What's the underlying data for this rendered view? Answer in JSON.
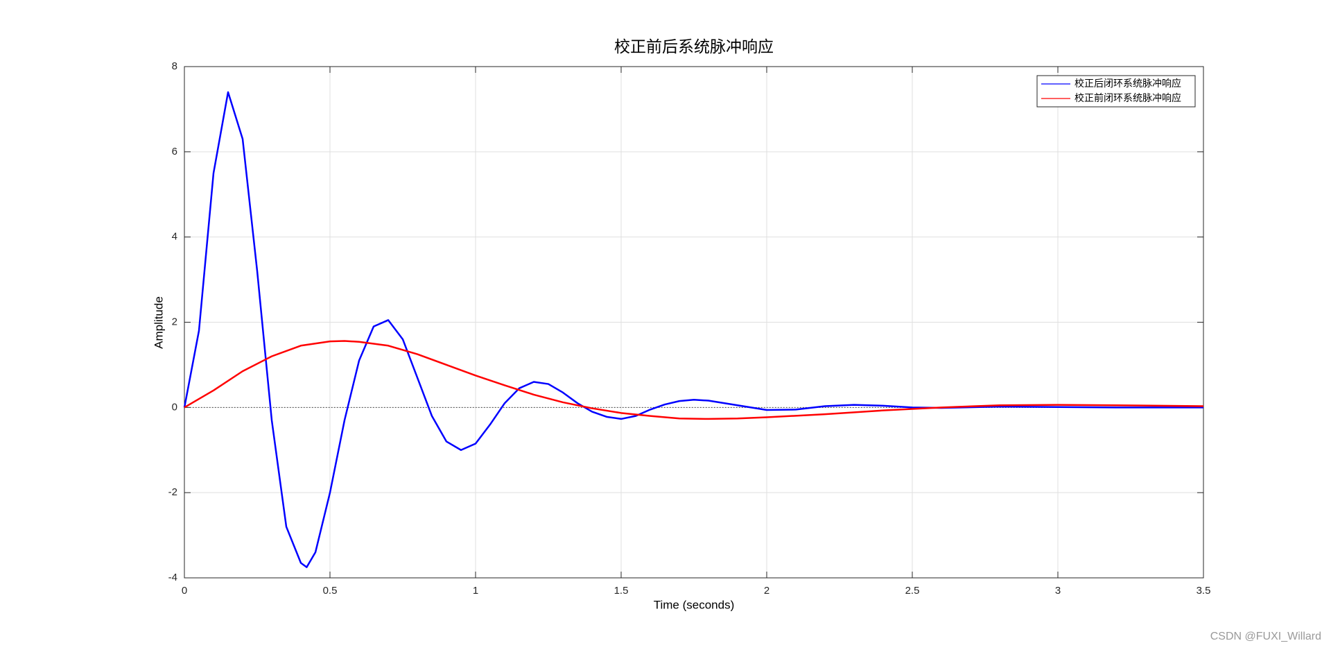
{
  "chart_data": {
    "type": "line",
    "title": "校正前后系统脉冲响应",
    "x_label": "Time (seconds)",
    "y_label": "Amplitude",
    "xlim": [
      0,
      3.5
    ],
    "xticks": [
      0,
      0.5,
      1,
      1.5,
      2,
      2.5,
      3,
      3.5
    ],
    "ylim": [
      -4,
      8
    ],
    "yticks": [
      -4,
      -2,
      0,
      2,
      4,
      6,
      8
    ],
    "grid": true,
    "legend": "upper right",
    "series": [
      {
        "name": "校正后闭环系统脉冲响应",
        "color": "#0000ff",
        "x": [
          0,
          0.05,
          0.1,
          0.15,
          0.2,
          0.25,
          0.3,
          0.35,
          0.4,
          0.42,
          0.45,
          0.5,
          0.55,
          0.6,
          0.65,
          0.7,
          0.75,
          0.8,
          0.85,
          0.9,
          0.95,
          1.0,
          1.05,
          1.1,
          1.15,
          1.2,
          1.25,
          1.3,
          1.35,
          1.4,
          1.45,
          1.5,
          1.55,
          1.6,
          1.65,
          1.7,
          1.75,
          1.8,
          1.9,
          2.0,
          2.1,
          2.2,
          2.3,
          2.4,
          2.5,
          2.6,
          2.8,
          3.0,
          3.2,
          3.5
        ],
        "values": [
          0,
          1.8,
          5.5,
          7.4,
          6.3,
          3.2,
          -0.3,
          -2.8,
          -3.65,
          -3.75,
          -3.4,
          -2.0,
          -0.3,
          1.1,
          1.9,
          2.05,
          1.6,
          0.7,
          -0.2,
          -0.8,
          -1.0,
          -0.85,
          -0.4,
          0.1,
          0.45,
          0.6,
          0.55,
          0.35,
          0.1,
          -0.1,
          -0.22,
          -0.27,
          -0.2,
          -0.05,
          0.07,
          0.15,
          0.18,
          0.16,
          0.05,
          -0.06,
          -0.05,
          0.03,
          0.06,
          0.04,
          0.0,
          -0.01,
          0.02,
          0.01,
          0.0,
          0.0
        ]
      },
      {
        "name": "校正前闭环系统脉冲响应",
        "color": "#ff0000",
        "x": [
          0,
          0.1,
          0.2,
          0.3,
          0.4,
          0.5,
          0.55,
          0.6,
          0.7,
          0.8,
          0.9,
          1.0,
          1.1,
          1.2,
          1.3,
          1.4,
          1.5,
          1.6,
          1.7,
          1.8,
          1.9,
          2.0,
          2.2,
          2.4,
          2.6,
          2.8,
          3.0,
          3.2,
          3.5
        ],
        "values": [
          0,
          0.4,
          0.85,
          1.2,
          1.45,
          1.55,
          1.56,
          1.54,
          1.45,
          1.25,
          1.0,
          0.75,
          0.52,
          0.3,
          0.12,
          -0.02,
          -0.13,
          -0.2,
          -0.26,
          -0.27,
          -0.26,
          -0.23,
          -0.16,
          -0.07,
          0.0,
          0.05,
          0.06,
          0.05,
          0.03
        ]
      }
    ]
  },
  "watermark": "CSDN @FUXI_Willard"
}
